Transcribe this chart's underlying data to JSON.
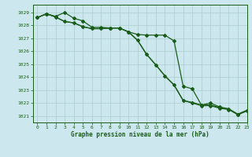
{
  "background_color": "#cce8ee",
  "grid_color": "#aacccc",
  "line_color": "#1a5c1a",
  "title": "Graphe pression niveau de la mer (hPa)",
  "ylim": [
    1020.5,
    1029.6
  ],
  "xlim": [
    -0.5,
    23
  ],
  "yticks": [
    1021,
    1022,
    1023,
    1024,
    1025,
    1026,
    1027,
    1028,
    1029
  ],
  "xticks": [
    0,
    1,
    2,
    3,
    4,
    5,
    6,
    7,
    8,
    9,
    10,
    11,
    12,
    13,
    14,
    15,
    16,
    17,
    18,
    19,
    20,
    21,
    22,
    23
  ],
  "series1_x": [
    0,
    1,
    2,
    3,
    4,
    5,
    6,
    7,
    8,
    9,
    10,
    11,
    12,
    13,
    14,
    15,
    16,
    17,
    18,
    19,
    20,
    21,
    22,
    23
  ],
  "series1_y": [
    1028.6,
    1028.9,
    1028.7,
    1029.0,
    1028.55,
    1028.35,
    1027.85,
    1027.85,
    1027.8,
    1027.8,
    1027.5,
    1027.3,
    1027.25,
    1027.25,
    1027.25,
    1026.8,
    1023.3,
    1023.1,
    1021.85,
    1022.0,
    1021.7,
    1021.55,
    1021.1,
    1021.4
  ],
  "series2_x": [
    0,
    1,
    2,
    3,
    4,
    5,
    6,
    7,
    8,
    9,
    10,
    11,
    12,
    13,
    14,
    15,
    16,
    17,
    18,
    19,
    20,
    21,
    22,
    23
  ],
  "series2_y": [
    1028.6,
    1028.9,
    1028.65,
    1028.3,
    1028.2,
    1027.9,
    1027.75,
    1027.75,
    1027.8,
    1027.8,
    1027.5,
    1026.85,
    1025.75,
    1024.95,
    1024.1,
    1023.4,
    1022.2,
    1022.0,
    1021.8,
    1021.8,
    1021.6,
    1021.5,
    1021.1,
    1021.4
  ],
  "series3_x": [
    0,
    1,
    2,
    3,
    4,
    5,
    6,
    7,
    8,
    9,
    10,
    11,
    12,
    13,
    14,
    15,
    16,
    17,
    18,
    19,
    20,
    21,
    22,
    23
  ],
  "series3_y": [
    1028.6,
    1028.9,
    1028.65,
    1028.3,
    1028.2,
    1027.9,
    1027.75,
    1027.75,
    1027.8,
    1027.8,
    1027.5,
    1026.85,
    1025.75,
    1024.95,
    1024.1,
    1023.4,
    1022.2,
    1022.05,
    1021.85,
    1021.85,
    1021.65,
    1021.55,
    1021.15,
    1021.45
  ],
  "marker": "D",
  "markersize": 2.0,
  "linewidth": 0.9
}
